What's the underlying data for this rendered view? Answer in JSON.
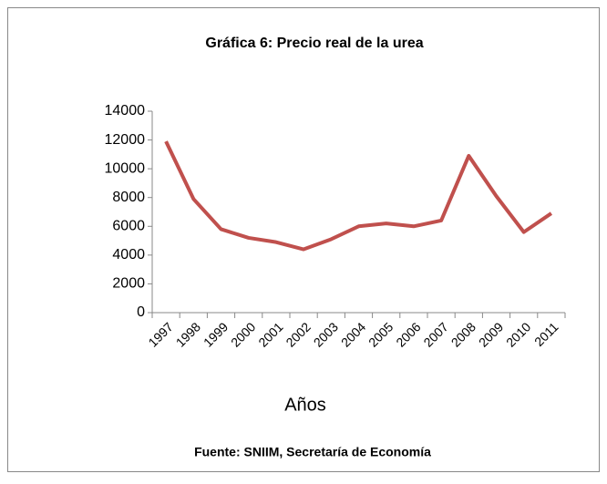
{
  "chart_data": {
    "type": "line",
    "title": "Gráfica 6: Precio real de la urea",
    "x_label": "Años",
    "source": "Fuente: SNIIM, Secretaría de Economía",
    "categories": [
      "1997",
      "1998",
      "1999",
      "2000",
      "2001",
      "2002",
      "2003",
      "2004",
      "2005",
      "2006",
      "2007",
      "2008",
      "2009",
      "2010",
      "2011"
    ],
    "values": [
      11900,
      7900,
      5800,
      5200,
      4900,
      4400,
      5100,
      6000,
      6200,
      6000,
      6400,
      10900,
      8100,
      5600,
      6900
    ],
    "color": "#c0504d",
    "ylim": [
      0,
      14000
    ],
    "yticks": [
      0,
      2000,
      4000,
      6000,
      8000,
      10000,
      12000,
      14000
    ],
    "grid": false
  }
}
